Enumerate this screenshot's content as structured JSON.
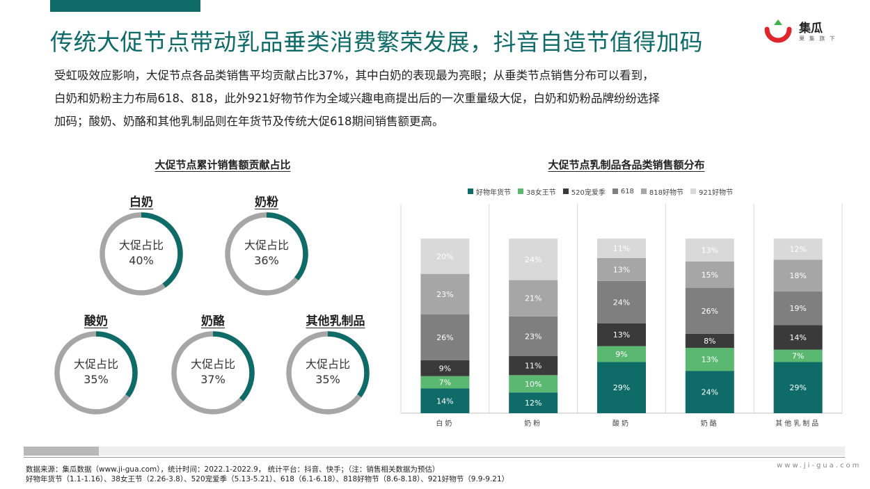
{
  "header": {
    "title": "传统大促节点带动乳品垂类消费繁荣发展，抖音自造节值得加码",
    "brand_name": "集瓜",
    "brand_sub": "果 集 旗 下"
  },
  "description": [
    "受虹吸效应影响，大促节点各品类销售平均贡献占比37%，其中白奶的表现最为亮眼；从垂类节点销售分布可以看到，",
    "白奶和奶粉主力布局618、818，此外921好物节作为全域兴趣电商提出后的一次重量级大促，白奶和奶粉品牌纷纷选择",
    "加码；酸奶、奶酪和其他乳制品则在年货节及传统大促618期间销售额更高。"
  ],
  "left_chart": {
    "title": "大促节点累计销售额贡献占比",
    "center_label": "大促占比",
    "donuts": [
      {
        "name": "白奶",
        "value": 40,
        "display": "40%"
      },
      {
        "name": "奶粉",
        "value": 36,
        "display": "36%"
      },
      {
        "name": "酸奶",
        "value": 35,
        "display": "35%"
      },
      {
        "name": "奶酪",
        "value": 37,
        "display": "37%"
      },
      {
        "name": "其他乳制品",
        "value": 35,
        "display": "35%"
      }
    ]
  },
  "chart_data": {
    "type": "bar",
    "stacked": true,
    "title": "大促节点乳制品各品类销售额分布",
    "categories": [
      "白奶",
      "奶粉",
      "酸奶",
      "奶酪",
      "其他乳制品"
    ],
    "legend_position": "top",
    "series": [
      {
        "name": "好物年货节",
        "color": "#0e6b67",
        "values": [
          14,
          12,
          29,
          24,
          29
        ]
      },
      {
        "name": "38女王节",
        "color": "#5bb870",
        "values": [
          7,
          10,
          9,
          13,
          7
        ]
      },
      {
        "name": "520宠爱季",
        "color": "#3a3a3a",
        "values": [
          9,
          11,
          13,
          8,
          14
        ]
      },
      {
        "name": "618",
        "color": "#7f7f7f",
        "values": [
          26,
          23,
          24,
          26,
          19
        ]
      },
      {
        "name": "818好物节",
        "color": "#a6a6a6",
        "values": [
          23,
          21,
          13,
          15,
          18
        ]
      },
      {
        "name": "921好物节",
        "color": "#d9d9d9",
        "values": [
          20,
          24,
          11,
          13,
          12
        ]
      }
    ],
    "ylim": [
      0,
      100
    ]
  },
  "colors": {
    "accent": "#0e6b67",
    "donut_track": "#a6a6a6"
  },
  "footer": {
    "source_line": "数据来源：集瓜数据（www.ji-gua.com），统计时间：2022.1-2022.9，  统计平台：抖音、快手；（注：销售相关数据为预估）",
    "period_line": "好物年货节（1.1-1.16）、38女王节（2.26-3.8）、520宠爱季（5.13-5.21）、618（6.1-6.18）、818好物节（8.6-8.18）、921好物节（9.9-9.21）",
    "site": "www.ji-gua.com"
  }
}
